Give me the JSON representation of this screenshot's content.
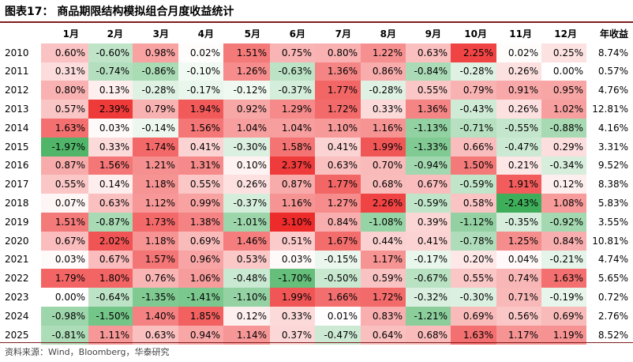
{
  "title": "图表17：  商品期限结构模拟组合月度收益统计",
  "source": "资料来源：Wind，Bloomberg，华泰研究",
  "columns": [
    "1月",
    "2月",
    "3月",
    "4月",
    "5月",
    "6月",
    "7月",
    "8月",
    "9月",
    "10月",
    "11月",
    "12月",
    "年收益"
  ],
  "rows": [
    {
      "year": "2010",
      "values": [
        "0.60%",
        "-0.60%",
        "0.98%",
        "0.02%",
        "1.51%",
        "0.75%",
        "0.80%",
        "1.22%",
        "0.63%",
        "2.25%",
        "0.02%",
        "0.25%"
      ],
      "annual": "8.74%"
    },
    {
      "year": "2011",
      "values": [
        "0.31%",
        "-0.74%",
        "-0.86%",
        "-0.10%",
        "1.26%",
        "-0.63%",
        "1.36%",
        "0.86%",
        "-0.84%",
        "-0.28%",
        "0.26%",
        "0.00%"
      ],
      "annual": "0.57%"
    },
    {
      "year": "2012",
      "values": [
        "0.80%",
        "0.13%",
        "-0.28%",
        "-0.17%",
        "-0.12%",
        "-0.37%",
        "1.77%",
        "-0.28%",
        "0.55%",
        "0.79%",
        "0.91%",
        "0.95%"
      ],
      "annual": "4.76%"
    },
    {
      "year": "2013",
      "values": [
        "0.57%",
        "2.39%",
        "0.79%",
        "1.94%",
        "0.92%",
        "1.29%",
        "1.72%",
        "0.33%",
        "1.36%",
        "-0.43%",
        "0.26%",
        "1.02%"
      ],
      "annual": "12.81%"
    },
    {
      "year": "2014",
      "values": [
        "1.63%",
        "0.03%",
        "-0.14%",
        "1.56%",
        "1.04%",
        "1.04%",
        "1.10%",
        "1.16%",
        "-1.13%",
        "-0.71%",
        "-0.55%",
        "-0.88%"
      ],
      "annual": "4.16%"
    },
    {
      "year": "2015",
      "values": [
        "-1.97%",
        "0.33%",
        "1.74%",
        "0.41%",
        "-0.30%",
        "1.58%",
        "0.41%",
        "1.99%",
        "-1.33%",
        "0.66%",
        "-0.47%",
        "0.29%"
      ],
      "annual": "3.31%"
    },
    {
      "year": "2016",
      "values": [
        "0.87%",
        "1.56%",
        "1.21%",
        "1.31%",
        "0.10%",
        "2.37%",
        "0.63%",
        "0.70%",
        "-0.94%",
        "1.50%",
        "0.21%",
        "-0.34%"
      ],
      "annual": "9.52%"
    },
    {
      "year": "2017",
      "values": [
        "0.55%",
        "0.14%",
        "1.18%",
        "0.55%",
        "0.26%",
        "0.87%",
        "1.77%",
        "0.68%",
        "0.67%",
        "-0.59%",
        "1.91%",
        "0.12%"
      ],
      "annual": "8.38%"
    },
    {
      "year": "2018",
      "values": [
        "0.07%",
        "0.63%",
        "1.12%",
        "0.99%",
        "-0.37%",
        "1.16%",
        "1.27%",
        "2.26%",
        "-0.59%",
        "0.58%",
        "-2.43%",
        "1.08%"
      ],
      "annual": "5.83%"
    },
    {
      "year": "2019",
      "values": [
        "1.51%",
        "-0.87%",
        "1.73%",
        "1.38%",
        "-1.01%",
        "3.10%",
        "0.84%",
        "-1.08%",
        "0.39%",
        "-1.12%",
        "-0.35%",
        "-0.92%"
      ],
      "annual": "3.55%"
    },
    {
      "year": "2020",
      "values": [
        "0.67%",
        "2.02%",
        "1.18%",
        "0.69%",
        "1.46%",
        "0.51%",
        "1.67%",
        "0.44%",
        "0.41%",
        "-0.78%",
        "1.25%",
        "0.84%"
      ],
      "annual": "10.81%"
    },
    {
      "year": "2021",
      "values": [
        "0.03%",
        "0.67%",
        "1.57%",
        "0.96%",
        "0.53%",
        "0.03%",
        "-0.15%",
        "1.17%",
        "-0.17%",
        "0.20%",
        "0.04%",
        "-0.21%"
      ],
      "annual": "4.74%"
    },
    {
      "year": "2022",
      "values": [
        "1.79%",
        "1.80%",
        "0.76%",
        "1.06%",
        "-0.48%",
        "-1.70%",
        "-0.50%",
        "0.59%",
        "-0.67%",
        "0.55%",
        "0.74%",
        "1.63%"
      ],
      "annual": "5.65%"
    },
    {
      "year": "2023",
      "values": [
        "0.00%",
        "-0.64%",
        "-1.35%",
        "-1.41%",
        "-1.10%",
        "1.99%",
        "1.66%",
        "1.72%",
        "-0.32%",
        "-0.30%",
        "0.71%",
        "-0.19%"
      ],
      "annual": "0.72%"
    },
    {
      "year": "2024",
      "values": [
        "-0.98%",
        "-1.50%",
        "1.40%",
        "1.85%",
        "0.12%",
        "0.33%",
        "0.01%",
        "0.83%",
        "-1.21%",
        "0.69%",
        "0.56%",
        "0.69%"
      ],
      "annual": "2.76%"
    },
    {
      "year": "2025",
      "values": [
        "-0.81%",
        "1.11%",
        "0.63%",
        "0.94%",
        "1.14%",
        "0.37%",
        "-0.47%",
        "0.64%",
        "0.68%",
        "1.63%",
        "1.17%",
        "1.19%"
      ],
      "annual": "8.52%"
    }
  ],
  "colors": {
    "positive_max": "#ee2b2b",
    "negative_max": "#3fae5a",
    "neutral": "#ffffff",
    "rule": "#7f1d1d"
  }
}
